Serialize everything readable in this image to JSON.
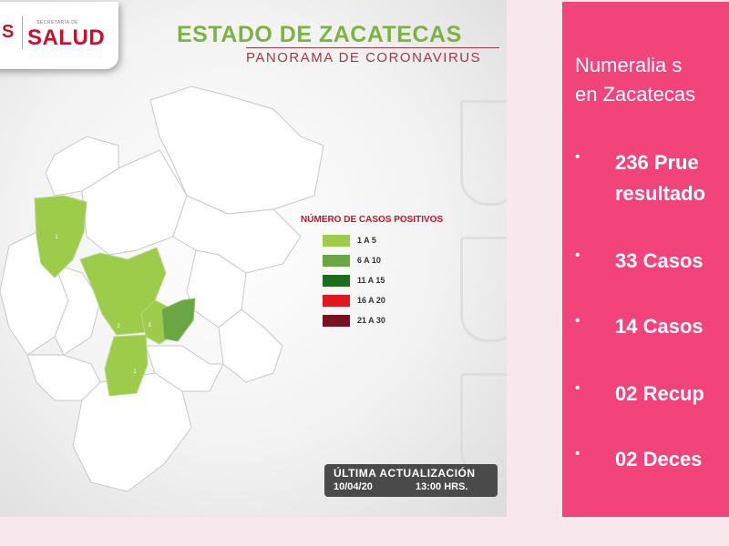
{
  "logo": {
    "left_text": "S",
    "small_text": "SECRETARÍA DE",
    "main_text": "SALUD"
  },
  "map_panel": {
    "title": "ESTADO DE ZACATECAS",
    "subtitle": "PANORAMA DE CORONAVIRUS",
    "legend": {
      "title": "NÚMERO DE CASOS POSITIVOS",
      "items": [
        {
          "label": "1 A 5",
          "color": "#9ccc4a"
        },
        {
          "label": "6 A 10",
          "color": "#6aa644"
        },
        {
          "label": "11 A 15",
          "color": "#1b6e1b"
        },
        {
          "label": "16 A 20",
          "color": "#e0181e"
        },
        {
          "label": "21 A 30",
          "color": "#7a1020"
        }
      ]
    },
    "municipality_cases": [
      {
        "label": "1",
        "color": "#9ccc4a"
      },
      {
        "label": "2",
        "color": "#9ccc4a"
      },
      {
        "label": "3",
        "color": "#9ccc4a"
      },
      {
        "label": "1",
        "color": "#9ccc4a"
      },
      {
        "label": "",
        "color": "#6aa644"
      }
    ],
    "update": {
      "title": "ÚLTIMA ACTUALIZACIÓN",
      "date": "10/04/20",
      "time": "13:00 HRS."
    }
  },
  "right_panel": {
    "heading_lines": [
      "Numeralia s",
      "en Zacatecas"
    ],
    "bullets": [
      {
        "line1": "236 Prue",
        "line2": "resultado"
      },
      {
        "line1": "33 Casos",
        "line2": ""
      },
      {
        "line1": "14 Casos",
        "line2": ""
      },
      {
        "line1": "02 Recup",
        "line2": ""
      },
      {
        "line1": "02 Deces",
        "line2": ""
      }
    ],
    "bullet_symbol": "•"
  },
  "colors": {
    "accent_pink": "#f2437a",
    "title_green": "#7cb342",
    "brand_red": "#c8102e"
  }
}
